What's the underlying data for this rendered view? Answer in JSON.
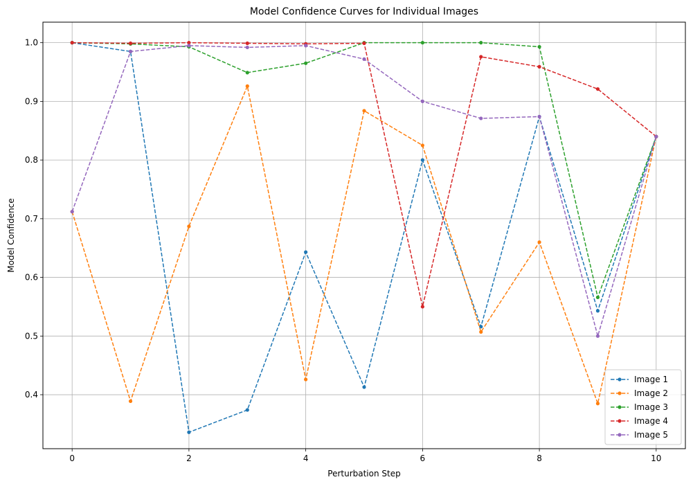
{
  "chart_data": {
    "type": "line",
    "title": "Model Confidence Curves for Individual Images",
    "xlabel": "Perturbation Step",
    "ylabel": "Model Confidence",
    "x": [
      0,
      1,
      2,
      3,
      4,
      5,
      6,
      7,
      8,
      9,
      10
    ],
    "xlim": [
      -0.5,
      10.5
    ],
    "ylim": [
      0.308,
      1.035
    ],
    "xticks": [
      0,
      2,
      4,
      6,
      8,
      10
    ],
    "yticks": [
      0.4,
      0.5,
      0.6,
      0.7,
      0.8,
      0.9,
      1.0
    ],
    "xtick_labels": [
      "0",
      "2",
      "4",
      "6",
      "8",
      "10"
    ],
    "ytick_labels": [
      "0.4",
      "0.5",
      "0.6",
      "0.7",
      "0.8",
      "0.9",
      "1.0"
    ],
    "grid": true,
    "line_style": "dashed",
    "marker": "dot",
    "legend_position": "lower-right",
    "series": [
      {
        "name": "Image 1",
        "color": "#1f77b4",
        "values": [
          1.0,
          0.985,
          0.336,
          0.374,
          0.643,
          0.413,
          0.8,
          0.516,
          0.874,
          0.543,
          0.84
        ]
      },
      {
        "name": "Image 2",
        "color": "#ff7f0e",
        "values": [
          0.712,
          0.389,
          0.687,
          0.926,
          0.426,
          0.884,
          0.825,
          0.507,
          0.66,
          0.385,
          0.84
        ]
      },
      {
        "name": "Image 3",
        "color": "#2ca02c",
        "values": [
          1.0,
          0.998,
          0.993,
          0.949,
          0.965,
          1.0,
          1.0,
          1.0,
          0.993,
          0.566,
          0.84
        ]
      },
      {
        "name": "Image 4",
        "color": "#d62728",
        "values": [
          1.0,
          0.999,
          1.0,
          0.999,
          0.998,
          0.999,
          0.55,
          0.976,
          0.959,
          0.921,
          0.84
        ]
      },
      {
        "name": "Image 5",
        "color": "#9467bd",
        "values": [
          0.712,
          0.985,
          0.995,
          0.992,
          0.995,
          0.972,
          0.9,
          0.871,
          0.874,
          0.5,
          0.84
        ]
      }
    ]
  }
}
